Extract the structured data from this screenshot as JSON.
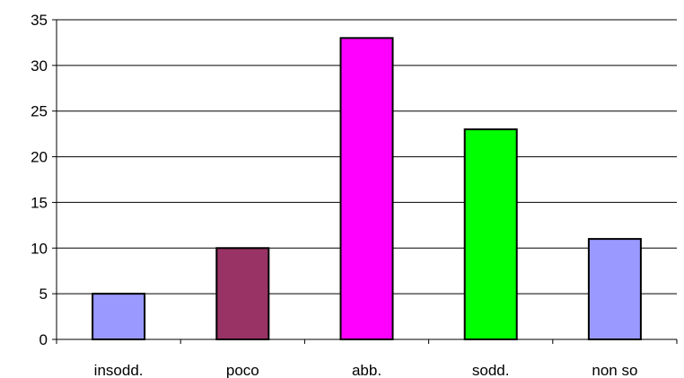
{
  "chart_data": {
    "type": "bar",
    "categories": [
      "insodd.",
      "poco",
      "abb.",
      "sodd.",
      "non so"
    ],
    "values": [
      5,
      10,
      33,
      23,
      11
    ],
    "bar_colors": [
      "#9999FF",
      "#993366",
      "#FF00FF",
      "#00FF00",
      "#9999FF"
    ],
    "ylim": [
      0,
      35
    ],
    "yticks": [
      "0",
      "5",
      "10",
      "15",
      "20",
      "25",
      "30",
      "35"
    ],
    "grid": true,
    "title": "",
    "xlabel": "",
    "ylabel": ""
  }
}
